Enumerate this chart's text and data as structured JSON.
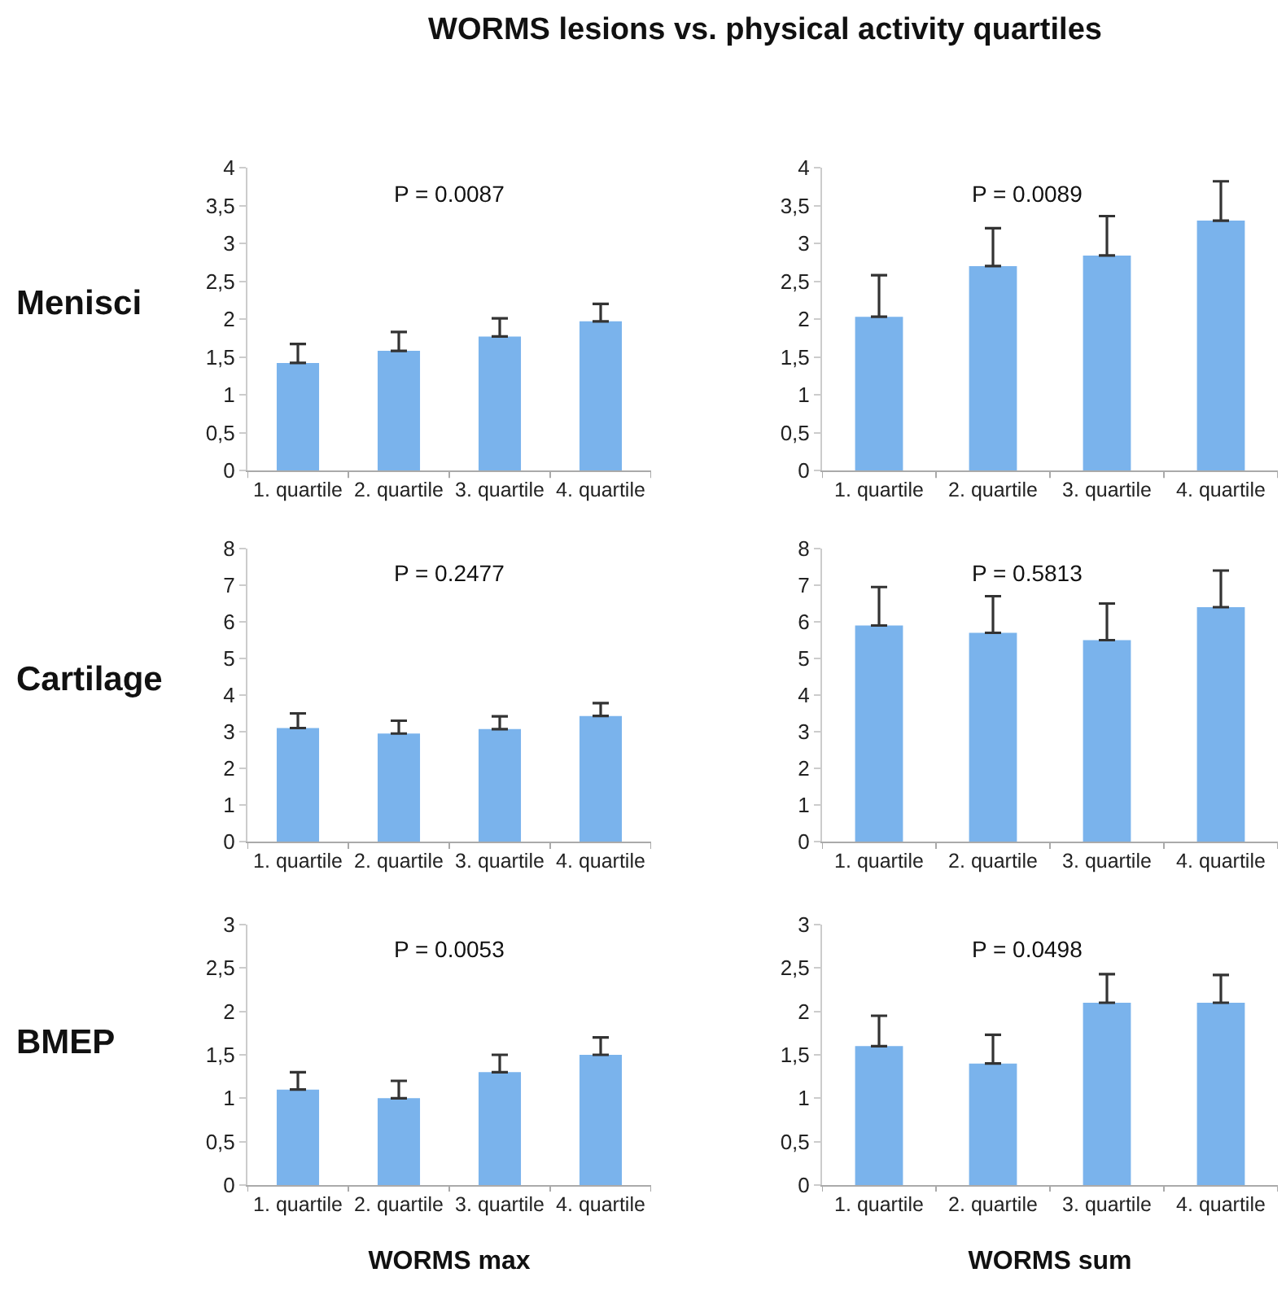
{
  "chart_data": [
    {
      "type": "bar",
      "title": "WORMS lesions vs. physical activity quartiles",
      "ylabel": "Menisci",
      "annotations": [
        "P = 0.0087"
      ],
      "categories": [
        "1. quartile",
        "2. quartile",
        "3. quartile",
        "4. quartile"
      ],
      "values": [
        1.42,
        1.58,
        1.77,
        1.97
      ],
      "errors": [
        [
          1.42,
          1.67
        ],
        [
          1.58,
          1.83
        ],
        [
          1.77,
          2.01
        ],
        [
          1.97,
          2.2
        ]
      ],
      "color": "#7ab3ec",
      "ylim": [
        0,
        4
      ],
      "yticks": [
        0,
        {
          "value": 0.5,
          "label": "0,5"
        },
        1,
        {
          "value": 1.5,
          "label": "1,5"
        },
        2,
        {
          "value": 2.5,
          "label": "2,5"
        },
        3,
        {
          "value": 3.5,
          "label": "3,5"
        },
        4
      ]
    },
    {
      "type": "bar",
      "annotations": [
        "P = 0.0089"
      ],
      "categories": [
        "1. quartile",
        "2. quartile",
        "3. quartile",
        "4. quartile"
      ],
      "values": [
        2.03,
        2.7,
        2.84,
        3.3
      ],
      "errors": [
        [
          2.03,
          2.58
        ],
        [
          2.7,
          3.2
        ],
        [
          2.84,
          3.36
        ],
        [
          3.3,
          3.82
        ]
      ],
      "color": "#7ab3ec",
      "ylim": [
        0,
        4
      ],
      "yticks": [
        0,
        {
          "value": 0.5,
          "label": "0,5"
        },
        1,
        {
          "value": 1.5,
          "label": "1,5"
        },
        2,
        {
          "value": 2.5,
          "label": "2,5"
        },
        3,
        {
          "value": 3.5,
          "label": "3,5"
        },
        4
      ]
    },
    {
      "type": "bar",
      "ylabel": "Cartilage",
      "annotations": [
        "P = 0.2477"
      ],
      "categories": [
        "1. quartile",
        "2. quartile",
        "3. quartile",
        "4. quartile"
      ],
      "values": [
        3.1,
        2.95,
        3.07,
        3.43
      ],
      "errors": [
        [
          3.1,
          3.5
        ],
        [
          2.95,
          3.3
        ],
        [
          3.07,
          3.42
        ],
        [
          3.43,
          3.78
        ]
      ],
      "color": "#7ab3ec",
      "ylim": [
        0,
        8
      ],
      "yticks": [
        0,
        1,
        2,
        3,
        4,
        5,
        6,
        7,
        8
      ]
    },
    {
      "type": "bar",
      "annotations": [
        "P = 0.5813"
      ],
      "categories": [
        "1. quartile",
        "2. quartile",
        "3. quartile",
        "4. quartile"
      ],
      "values": [
        5.9,
        5.7,
        5.5,
        6.4
      ],
      "errors": [
        [
          5.9,
          6.95
        ],
        [
          5.7,
          6.7
        ],
        [
          5.5,
          6.5
        ],
        [
          6.4,
          7.4
        ]
      ],
      "color": "#7ab3ec",
      "ylim": [
        0,
        8
      ],
      "yticks": [
        0,
        1,
        2,
        3,
        4,
        5,
        6,
        7,
        8
      ]
    },
    {
      "type": "bar",
      "ylabel": "BMEP",
      "xlabel": "WORMS max",
      "annotations": [
        "P = 0.0053"
      ],
      "categories": [
        "1. quartile",
        "2. quartile",
        "3. quartile",
        "4. quartile"
      ],
      "values": [
        1.1,
        1.0,
        1.3,
        1.5
      ],
      "errors": [
        [
          1.1,
          1.3
        ],
        [
          1.0,
          1.2
        ],
        [
          1.3,
          1.5
        ],
        [
          1.5,
          1.7
        ]
      ],
      "color": "#7ab3ec",
      "ylim": [
        0,
        3
      ],
      "yticks": [
        0,
        {
          "value": 0.5,
          "label": "0,5"
        },
        1,
        {
          "value": 1.5,
          "label": "1,5"
        },
        2,
        {
          "value": 2.5,
          "label": "2,5"
        },
        3
      ]
    },
    {
      "type": "bar",
      "xlabel": "WORMS sum",
      "annotations": [
        "P = 0.0498"
      ],
      "categories": [
        "1. quartile",
        "2. quartile",
        "3. quartile",
        "4. quartile"
      ],
      "values": [
        1.6,
        1.4,
        2.1,
        2.1
      ],
      "errors": [
        [
          1.6,
          1.95
        ],
        [
          1.4,
          1.73
        ],
        [
          2.1,
          2.43
        ],
        [
          2.1,
          2.42
        ]
      ],
      "color": "#7ab3ec",
      "ylim": [
        0,
        3
      ],
      "yticks": [
        0,
        {
          "value": 0.5,
          "label": "0,5"
        },
        1,
        {
          "value": 1.5,
          "label": "1,5"
        },
        2,
        {
          "value": 2.5,
          "label": "2,5"
        },
        3
      ]
    }
  ]
}
